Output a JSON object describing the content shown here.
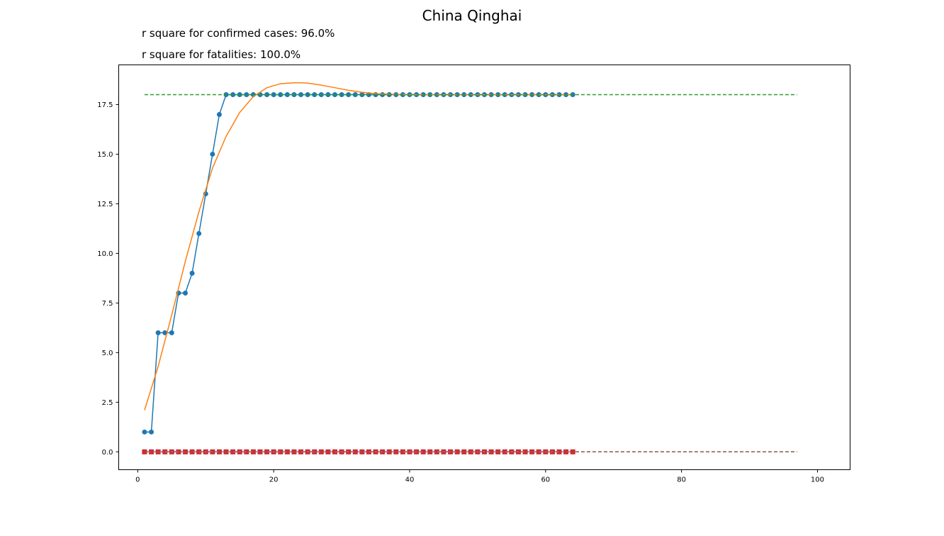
{
  "title": "China Qinghai",
  "annotations": [
    "r square for confirmed cases: 96.0%",
    "r square for fatalities: 100.0%"
  ],
  "chart_data": {
    "type": "line",
    "title": "China Qinghai",
    "xlabel": "",
    "ylabel": "",
    "xlim": [
      -2.8,
      104.8
    ],
    "ylim": [
      -0.9,
      19.5
    ],
    "xticks": [
      0,
      20,
      40,
      60,
      80,
      100
    ],
    "yticks": [
      0.0,
      2.5,
      5.0,
      7.5,
      10.0,
      12.5,
      15.0,
      17.5
    ],
    "xtick_labels": [
      "0",
      "20",
      "40",
      "60",
      "80",
      "100"
    ],
    "ytick_labels": [
      "0.0",
      "2.5",
      "5.0",
      "7.5",
      "10.0",
      "12.5",
      "15.0",
      "17.5"
    ],
    "grid": false,
    "series": [
      {
        "style": "line-markers",
        "color": "#1f77b4",
        "x": [
          1,
          2,
          3,
          4,
          5,
          6,
          7,
          8,
          9,
          10,
          11,
          12,
          13,
          14,
          15,
          16,
          17,
          18,
          19,
          20,
          21,
          22,
          23,
          24,
          25,
          26,
          27,
          28,
          29,
          30,
          31,
          32,
          33,
          34,
          35,
          36,
          37,
          38,
          39,
          40,
          41,
          42,
          43,
          44,
          45,
          46,
          47,
          48,
          49,
          50,
          51,
          52,
          53,
          54,
          55,
          56,
          57,
          58,
          59,
          60,
          61,
          62,
          63,
          64
        ],
        "values": [
          1,
          1,
          6,
          6,
          6,
          8,
          8,
          9,
          11,
          13,
          15,
          17,
          18,
          18,
          18,
          18,
          18,
          18,
          18,
          18,
          18,
          18,
          18,
          18,
          18,
          18,
          18,
          18,
          18,
          18,
          18,
          18,
          18,
          18,
          18,
          18,
          18,
          18,
          18,
          18,
          18,
          18,
          18,
          18,
          18,
          18,
          18,
          18,
          18,
          18,
          18,
          18,
          18,
          18,
          18,
          18,
          18,
          18,
          18,
          18,
          18,
          18,
          18,
          18
        ]
      },
      {
        "style": "line",
        "color": "#ff7f0e",
        "x": [
          1,
          3,
          5,
          7,
          9,
          11,
          13,
          15,
          17,
          19,
          21,
          23,
          24,
          25,
          27,
          29,
          31,
          33,
          35,
          37,
          40,
          45,
          50,
          55,
          60,
          64
        ],
        "values": [
          2.1,
          4.3,
          6.9,
          9.6,
          12.1,
          14.3,
          15.9,
          17.1,
          17.9,
          18.35,
          18.55,
          18.6,
          18.6,
          18.58,
          18.48,
          18.35,
          18.22,
          18.12,
          18.05,
          18.02,
          18.0,
          18.0,
          18.0,
          18.0,
          18.0,
          18.0
        ]
      },
      {
        "style": "dashed",
        "color": "#2ca02c",
        "x": [
          1,
          97
        ],
        "values": [
          18,
          18
        ]
      },
      {
        "style": "squares",
        "color": "#d62728",
        "x": [
          1,
          2,
          3,
          4,
          5,
          6,
          7,
          8,
          9,
          10,
          11,
          12,
          13,
          14,
          15,
          16,
          17,
          18,
          19,
          20,
          21,
          22,
          23,
          24,
          25,
          26,
          27,
          28,
          29,
          30,
          31,
          32,
          33,
          34,
          35,
          36,
          37,
          38,
          39,
          40,
          41,
          42,
          43,
          44,
          45,
          46,
          47,
          48,
          49,
          50,
          51,
          52,
          53,
          54,
          55,
          56,
          57,
          58,
          59,
          60,
          61,
          62,
          63,
          64
        ],
        "values": [
          0,
          0,
          0,
          0,
          0,
          0,
          0,
          0,
          0,
          0,
          0,
          0,
          0,
          0,
          0,
          0,
          0,
          0,
          0,
          0,
          0,
          0,
          0,
          0,
          0,
          0,
          0,
          0,
          0,
          0,
          0,
          0,
          0,
          0,
          0,
          0,
          0,
          0,
          0,
          0,
          0,
          0,
          0,
          0,
          0,
          0,
          0,
          0,
          0,
          0,
          0,
          0,
          0,
          0,
          0,
          0,
          0,
          0,
          0,
          0,
          0,
          0,
          0,
          0
        ]
      },
      {
        "style": "line",
        "color": "#9467bd",
        "x": [
          1,
          64
        ],
        "values": [
          0,
          0
        ]
      },
      {
        "style": "dashed",
        "color": "#8c564b",
        "x": [
          1,
          97
        ],
        "values": [
          0,
          0
        ]
      }
    ]
  }
}
